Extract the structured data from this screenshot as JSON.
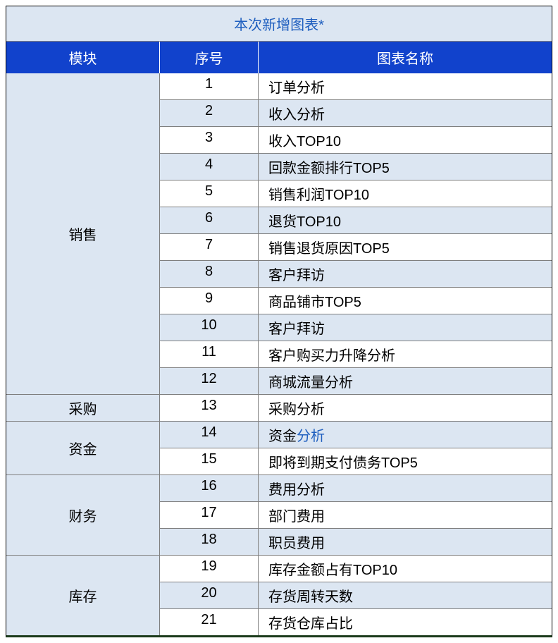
{
  "table": {
    "title": "本次新增图表*",
    "headers": {
      "module": "模块",
      "index": "序号",
      "name": "图表名称"
    },
    "colors": {
      "header_bg": "#1142cc",
      "header_text": "#ffffff",
      "title_bg": "#dce6f2",
      "title_text": "#1f5fbf",
      "row_odd_bg": "#ffffff",
      "row_even_bg": "#dce6f2",
      "module_bg": "#dce6f2",
      "border": "#7f7f7f",
      "text": "#000000",
      "link": "#1f5fbf"
    },
    "column_widths": {
      "module": 218,
      "index": 140
    },
    "font_size": 20,
    "modules": [
      {
        "label": "销售",
        "rows": [
          {
            "index": "1",
            "name": "订单分析"
          },
          {
            "index": "2",
            "name": "收入分析"
          },
          {
            "index": "3",
            "name": "收入TOP10"
          },
          {
            "index": "4",
            "name": "回款金额排行TOP5"
          },
          {
            "index": "5",
            "name": "销售利润TOP10"
          },
          {
            "index": "6",
            "name": "退货TOP10"
          },
          {
            "index": "7",
            "name": "销售退货原因TOP5"
          },
          {
            "index": "8",
            "name": "客户拜访"
          },
          {
            "index": "9",
            "name": "商品铺市TOP5"
          },
          {
            "index": "10",
            "name": "客户拜访"
          },
          {
            "index": "11",
            "name": "客户购买力升降分析"
          },
          {
            "index": "12",
            "name": "商城流量分析"
          }
        ]
      },
      {
        "label": "采购",
        "rows": [
          {
            "index": "13",
            "name": "采购分析"
          }
        ]
      },
      {
        "label": "资金",
        "rows": [
          {
            "index": "14",
            "name_parts": [
              {
                "t": "资金"
              },
              {
                "t": "分析",
                "link": true
              }
            ]
          },
          {
            "index": "15",
            "name": "即将到期支付债务TOP5"
          }
        ]
      },
      {
        "label": "财务",
        "rows": [
          {
            "index": "16",
            "name": "费用分析"
          },
          {
            "index": "17",
            "name": "部门费用"
          },
          {
            "index": "18",
            "name": "职员费用"
          }
        ]
      },
      {
        "label": "库存",
        "rows": [
          {
            "index": "19",
            "name": "库存金额占有TOP10"
          },
          {
            "index": "20",
            "name": "存货周转天数"
          },
          {
            "index": "21",
            "name": "存货仓库占比"
          }
        ]
      }
    ]
  }
}
